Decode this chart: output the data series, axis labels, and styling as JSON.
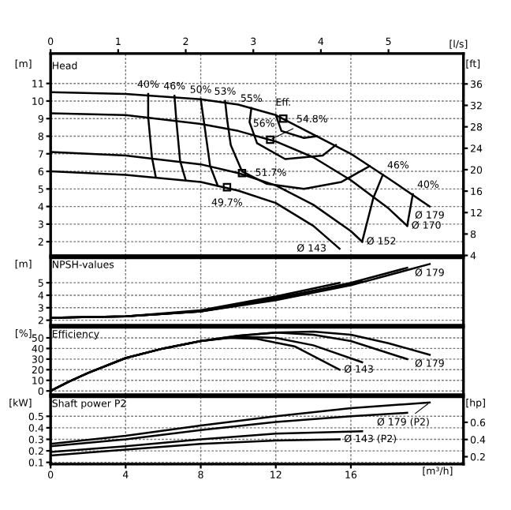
{
  "chart_data": [
    {
      "type": "line",
      "title": "Head",
      "ylabel": "[m]",
      "y2label": "[ft]",
      "x2label": "[l/s]",
      "xlim": [
        0,
        22
      ],
      "xticks": [
        0,
        4,
        8,
        12,
        16
      ],
      "x2lim": [
        0,
        6.11
      ],
      "x2ticks": [
        0,
        1,
        2,
        3,
        4,
        5
      ],
      "ylim": [
        1.2,
        12.7
      ],
      "yticks": [
        2,
        3,
        4,
        5,
        6,
        7,
        8,
        9,
        10,
        11
      ],
      "y2lim": [
        3.94,
        41.67
      ],
      "y2ticks": [
        4,
        8,
        12,
        16,
        20,
        24,
        28,
        32,
        36
      ],
      "tick_labels": "y",
      "grid": true,
      "series": [
        {
          "name": "Ø 179",
          "color": "#000000",
          "x": [
            0,
            4,
            8,
            10,
            12,
            14,
            16,
            18,
            20.2
          ],
          "values": [
            10.5,
            10.4,
            10.1,
            9.8,
            9.2,
            8.1,
            7.0,
            5.6,
            4.0
          ]
        },
        {
          "name": "Ø 170",
          "color": "#000000",
          "x": [
            0,
            4,
            8,
            10,
            12,
            14,
            16,
            18,
            19
          ],
          "values": [
            9.3,
            9.2,
            8.7,
            8.3,
            7.7,
            6.8,
            5.5,
            3.9,
            2.9
          ]
        },
        {
          "name": "Ø 152",
          "color": "#000000",
          "x": [
            0,
            4,
            8,
            10,
            12,
            14,
            16,
            16.6
          ],
          "values": [
            7.1,
            6.9,
            6.4,
            5.9,
            5.2,
            4.1,
            2.6,
            2.0
          ]
        },
        {
          "name": "Ø 143",
          "color": "#000000",
          "x": [
            0,
            4,
            8,
            10,
            12,
            14,
            15.4
          ],
          "values": [
            6.0,
            5.8,
            5.4,
            4.9,
            4.2,
            2.9,
            1.6
          ]
        },
        {
          "color": "#000000",
          "x": [
            5.6,
            5.4,
            5.2,
            5.2
          ],
          "values": [
            5.7,
            6.8,
            9.1,
            10.4
          ]
        },
        {
          "color": "#000000",
          "x": [
            7.2,
            6.9,
            6.7,
            6.6
          ],
          "values": [
            5.5,
            6.6,
            8.9,
            10.3
          ]
        },
        {
          "color": "#000000",
          "x": [
            8.9,
            8.5,
            8.2,
            8.0
          ],
          "values": [
            5.2,
            6.3,
            8.6,
            10.1
          ]
        },
        {
          "color": "#000000",
          "x": [
            17.0,
            15.5,
            13.5,
            11.5,
            10.2,
            9.6,
            9.4,
            9.3
          ],
          "values": [
            6.3,
            5.4,
            5.0,
            5.3,
            6.0,
            7.5,
            9.0,
            10.0
          ]
        },
        {
          "color": "#000000",
          "x": [
            15.2,
            14.5,
            12.5,
            11.0,
            10.6,
            10.7
          ],
          "values": [
            7.5,
            6.9,
            6.7,
            7.6,
            8.8,
            9.6
          ]
        },
        {
          "color": "#000000",
          "x": [
            14.2,
            13.5,
            12.3,
            12.0
          ],
          "values": [
            8.0,
            7.9,
            8.3,
            9.2
          ]
        },
        {
          "color": "#000000",
          "x": [
            16.6,
            17.2,
            17.7
          ],
          "values": [
            2.0,
            4.5,
            5.8
          ]
        },
        {
          "color": "#000000",
          "x": [
            19.0,
            19.3
          ],
          "values": [
            2.9,
            4.7
          ]
        },
        {
          "type": "scatter",
          "marker": "square",
          "color": "#000000",
          "x": [
            12.4,
            11.7,
            10.2,
            9.4
          ],
          "values": [
            9.0,
            7.8,
            5.9,
            5.1
          ]
        }
      ],
      "annotations": [
        {
          "text": "40%",
          "x": 5.2,
          "y": 10.4
        },
        {
          "text": "46%",
          "x": 6.6,
          "y": 10.3
        },
        {
          "text": "50%",
          "x": 8.0,
          "y": 10.1
        },
        {
          "text": "53%",
          "x": 9.3,
          "y": 10.0
        },
        {
          "text": "55%",
          "x": 10.7,
          "y": 9.6
        },
        {
          "text": "Eff.",
          "x": 12.4,
          "y": 9.0
        },
        {
          "text": "56%",
          "x": 12.3,
          "y": 8.3
        },
        {
          "text": "54.8%",
          "x": 11.7,
          "y": 7.8
        },
        {
          "text": "51.7%",
          "x": 10.2,
          "y": 5.9
        },
        {
          "text": "49.7%",
          "x": 9.4,
          "y": 5.1
        },
        {
          "text": "46%",
          "x": 17.7,
          "y": 5.8
        },
        {
          "text": "40%",
          "x": 19.3,
          "y": 4.7
        }
      ]
    },
    {
      "type": "line",
      "title": "NPSH-values",
      "ylabel": "[m]",
      "xlim": [
        0,
        22
      ],
      "xticks": [
        0,
        4,
        8,
        12,
        16
      ],
      "ylim": [
        1.6,
        7
      ],
      "yticks": [
        2,
        3,
        4,
        5
      ],
      "tick_labels": "y",
      "grid": true,
      "series": [
        {
          "name": "Ø 179",
          "color": "#000000",
          "x": [
            0,
            4,
            8,
            12,
            16,
            20.2
          ],
          "values": [
            2.2,
            2.3,
            2.7,
            3.6,
            4.8,
            6.5
          ]
        },
        {
          "color": "#000000",
          "x": [
            0,
            4,
            8,
            12,
            16,
            19
          ],
          "values": [
            2.2,
            2.3,
            2.7,
            3.7,
            5.0,
            6.2
          ]
        },
        {
          "color": "#000000",
          "x": [
            0,
            4,
            8,
            12,
            16.6
          ],
          "values": [
            2.2,
            2.3,
            2.7,
            3.8,
            5.1
          ]
        },
        {
          "color": "#000000",
          "x": [
            0,
            4,
            8,
            12,
            15.4
          ],
          "values": [
            2.2,
            2.3,
            2.8,
            3.9,
            5.0
          ]
        }
      ]
    },
    {
      "type": "line",
      "title": "Efficiency",
      "ylabel": "[%]",
      "xlim": [
        0,
        22
      ],
      "xticks": [
        0,
        4,
        8,
        12,
        16
      ],
      "ylim": [
        -3.5,
        60
      ],
      "yticks": [
        0,
        10,
        20,
        30,
        40,
        50
      ],
      "tick_labels": "y",
      "grid": true,
      "series": [
        {
          "name": "Ø 179",
          "color": "#000000",
          "x": [
            0,
            1,
            2,
            4,
            6,
            8,
            10,
            12,
            14,
            16,
            18,
            20.2
          ],
          "values": [
            0,
            9,
            17,
            31,
            40,
            47,
            52,
            55,
            56,
            53,
            45,
            34
          ]
        },
        {
          "color": "#000000",
          "x": [
            0,
            1,
            2,
            4,
            6,
            8,
            10,
            12,
            14,
            16,
            19
          ],
          "values": [
            0,
            9,
            17,
            31,
            40,
            47,
            52,
            55,
            53,
            47,
            30
          ]
        },
        {
          "color": "#000000",
          "x": [
            0,
            1,
            2,
            4,
            6,
            8,
            10,
            12,
            14,
            16.6
          ],
          "values": [
            0,
            9,
            17,
            31,
            40,
            47,
            51,
            50,
            43,
            27
          ]
        },
        {
          "name": "Ø 143",
          "color": "#000000",
          "x": [
            0,
            1,
            2,
            4,
            6,
            8,
            9.5,
            11,
            13,
            15.4
          ],
          "values": [
            0,
            9,
            17,
            31,
            40,
            47,
            50,
            49,
            42,
            20
          ]
        }
      ]
    },
    {
      "type": "line",
      "title": "Shaft power P2",
      "ylabel": "[kW]",
      "y2label": "[hp]",
      "xlabel": "[m³/h]",
      "xlim": [
        0,
        22
      ],
      "xticks": [
        0,
        4,
        8,
        12,
        16
      ],
      "ylim": [
        0.085,
        0.67
      ],
      "yticks": [
        0.1,
        0.2,
        0.3,
        0.4,
        0.5
      ],
      "y2lim": [
        0.114,
        0.898
      ],
      "y2ticks": [
        0.2,
        0.4,
        0.6
      ],
      "grid": true,
      "series": [
        {
          "name": "Ø 179 (P2)",
          "color": "#000000",
          "x": [
            0,
            4,
            8,
            12,
            16,
            20.2
          ],
          "values": [
            0.26,
            0.33,
            0.42,
            0.5,
            0.57,
            0.62
          ]
        },
        {
          "color": "#000000",
          "x": [
            0,
            4,
            8,
            12,
            16,
            19
          ],
          "values": [
            0.24,
            0.3,
            0.38,
            0.45,
            0.5,
            0.53
          ]
        },
        {
          "color": "#000000",
          "x": [
            0,
            4,
            8,
            12,
            16.6
          ],
          "values": [
            0.19,
            0.24,
            0.3,
            0.35,
            0.37
          ]
        },
        {
          "name": "Ø 143 (P2)",
          "color": "#000000",
          "x": [
            0,
            4,
            8,
            12,
            15.4
          ],
          "values": [
            0.16,
            0.21,
            0.26,
            0.29,
            0.3
          ]
        }
      ]
    }
  ]
}
